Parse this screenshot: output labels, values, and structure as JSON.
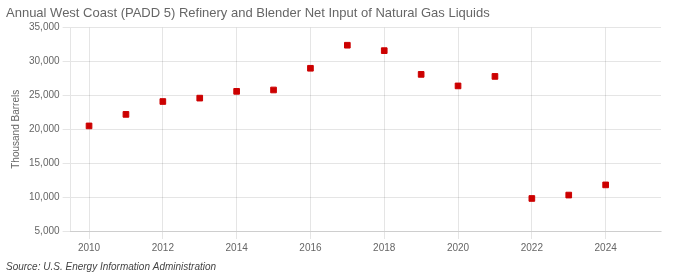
{
  "chart_data": {
    "type": "scatter",
    "title": "Annual West Coast (PADD 5) Refinery and Blender Net Input of Natural Gas Liquids",
    "ylabel": "Thousand Barrels",
    "source": "Source: U.S. Energy Information Administration",
    "x": [
      2010,
      2011,
      2012,
      2013,
      2014,
      2015,
      2016,
      2017,
      2018,
      2019,
      2020,
      2021,
      2022,
      2023,
      2024
    ],
    "values": [
      20500,
      22200,
      24100,
      24600,
      25600,
      25800,
      29000,
      32400,
      31600,
      28100,
      26400,
      27800,
      9800,
      10300,
      11800
    ],
    "color": "#cc0000",
    "marker": "square",
    "xlim": [
      2009.5,
      2025.5
    ],
    "ylim": [
      5000,
      35000
    ],
    "xticks": [
      2010,
      2012,
      2014,
      2016,
      2018,
      2020,
      2022,
      2024
    ],
    "yticks": [
      {
        "value": 5000,
        "label": "5,000"
      },
      {
        "value": 10000,
        "label": "10,000"
      },
      {
        "value": 15000,
        "label": "15,000"
      },
      {
        "value": 20000,
        "label": "20,000"
      },
      {
        "value": 25000,
        "label": "25,000"
      },
      {
        "value": 30000,
        "label": "30,000"
      },
      {
        "value": 35000,
        "label": "35,000"
      }
    ],
    "grid": true
  }
}
